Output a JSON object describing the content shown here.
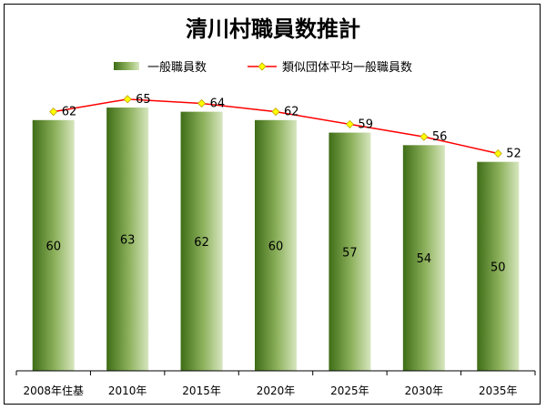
{
  "chart_data": {
    "type": "bar",
    "title": "清川村職員数推計",
    "xlabel": "",
    "ylabel": "",
    "ylim": [
      0,
      75
    ],
    "grid": false,
    "legend_position": "top",
    "categories": [
      "2008年住基",
      "2010年",
      "2015年",
      "2020年",
      "2025年",
      "2030年",
      "2035年"
    ],
    "series": [
      {
        "name": "一般職員数",
        "type": "bar",
        "values": [
          60,
          63,
          62,
          60,
          57,
          54,
          50
        ],
        "color": "#4e7f22"
      },
      {
        "name": "類似団体平均一般職員数",
        "type": "line",
        "values": [
          62,
          65,
          64,
          62,
          59,
          56,
          52
        ],
        "color": "#ff0000",
        "marker_color": "#ffff00"
      }
    ]
  }
}
